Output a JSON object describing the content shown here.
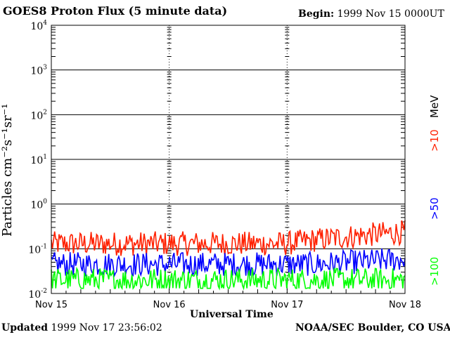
{
  "header": {
    "title": "GOES8 Proton Flux (5 minute data)",
    "begin_label": "Begin:",
    "begin_value": "1999 Nov 15 0000UT"
  },
  "footer": {
    "updated_label": "Updated",
    "updated_value": "1999 Nov 17 23:56:02",
    "credit": "NOAA/SEC Boulder, CO USA"
  },
  "chart_data": {
    "type": "line",
    "xlabel": "Universal Time",
    "ylabel": "Particles cm⁻²s⁻¹sr⁻¹",
    "x_ticks": [
      "Nov 15",
      "Nov 16",
      "Nov 17",
      "Nov 18"
    ],
    "y_scale": "log",
    "ylim": [
      0.01,
      10000
    ],
    "y_ticks": [
      {
        "base": "10",
        "exp": "-2"
      },
      {
        "base": "10",
        "exp": "-1"
      },
      {
        "base": "10",
        "exp": "0"
      },
      {
        "base": "10",
        "exp": "1"
      },
      {
        "base": "10",
        "exp": "2"
      },
      {
        "base": "10",
        "exp": "3"
      },
      {
        "base": "10",
        "exp": "4"
      }
    ],
    "energy_unit": "MeV",
    "series": [
      {
        "name": ">10",
        "color": "#ff2000",
        "typical_flux": 0.13,
        "flux_range": [
          0.06,
          0.6
        ]
      },
      {
        "name": ">50",
        "color": "#0000ff",
        "typical_flux": 0.045,
        "flux_range": [
          0.025,
          0.15
        ]
      },
      {
        "name": ">100",
        "color": "#00ff00",
        "typical_flux": 0.02,
        "flux_range": [
          0.013,
          0.05
        ]
      }
    ]
  }
}
